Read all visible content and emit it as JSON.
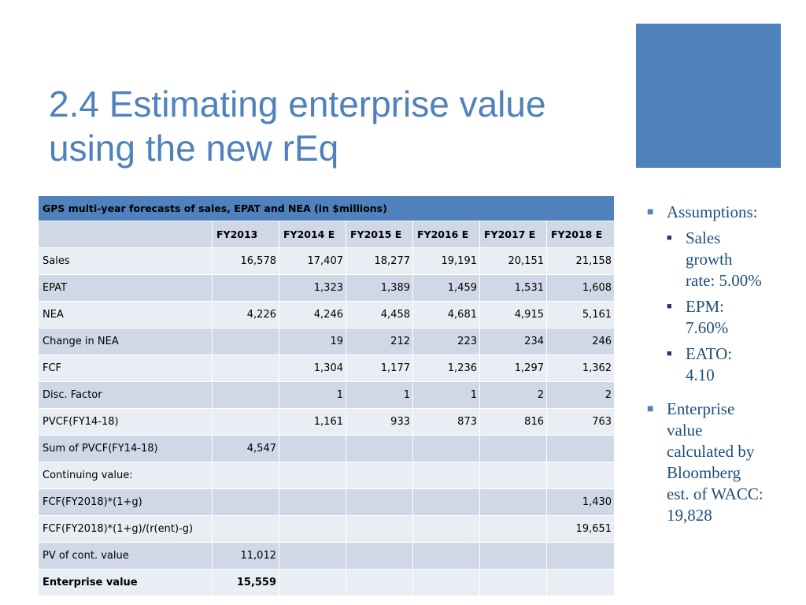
{
  "slide": {
    "title_line1": "2.4 Estimating enterprise value",
    "title_line2": "using the new rEq",
    "accent_color": "#4f81bd"
  },
  "table": {
    "caption": "GPS multi-year forecasts of sales, EPAT and NEA (in $millions)",
    "columns": [
      "",
      "FY2013",
      "FY2014 E",
      "FY2015 E",
      "FY2016 E",
      "FY2017 E",
      "FY2018 E"
    ],
    "rows": [
      [
        "Sales",
        "16,578",
        "17,407",
        "18,277",
        "19,191",
        "20,151",
        "21,158"
      ],
      [
        "EPAT",
        "",
        "1,323",
        "1,389",
        "1,459",
        "1,531",
        "1,608"
      ],
      [
        "NEA",
        "4,226",
        "4,246",
        "4,458",
        "4,681",
        "4,915",
        "5,161"
      ],
      [
        "Change in NEA",
        "",
        "19",
        "212",
        "223",
        "234",
        "246"
      ],
      [
        "FCF",
        "",
        "1,304",
        "1,177",
        "1,236",
        "1,297",
        "1,362"
      ],
      [
        "Disc. Factor",
        "",
        "1",
        "1",
        "1",
        "2",
        "2"
      ],
      [
        "PVCF(FY14-18)",
        "",
        "1,161",
        "933",
        "873",
        "816",
        "763"
      ],
      [
        "Sum of PVCF(FY14-18)",
        "4,547",
        "",
        "",
        "",
        "",
        ""
      ],
      [
        "Continuing value:",
        "",
        "",
        "",
        "",
        "",
        ""
      ],
      [
        "FCF(FY2018)*(1+g)",
        "",
        "",
        "",
        "",
        "",
        "1,430"
      ],
      [
        "FCF(FY2018)*(1+g)/(r(ent)-g)",
        "",
        "",
        "",
        "",
        "",
        "19,651"
      ],
      [
        "PV of cont. value",
        "11,012",
        "",
        "",
        "",
        "",
        ""
      ],
      [
        "Enterprise value",
        "15,559",
        "",
        "",
        "",
        "",
        ""
      ]
    ]
  },
  "notes": {
    "assumptions_label": "Assumptions:",
    "sub": [
      {
        "l1": "Sales",
        "l2": "growth",
        "l3": "rate: 5.00%"
      },
      {
        "l1": "EPM:",
        "l2": "7.60%"
      },
      {
        "l1": "EATO:",
        "l2": "4.10"
      }
    ],
    "ev_lines": [
      "Enterprise",
      "value",
      "calculated by",
      "Bloomberg",
      "est. of WACC:",
      "19,828"
    ]
  }
}
